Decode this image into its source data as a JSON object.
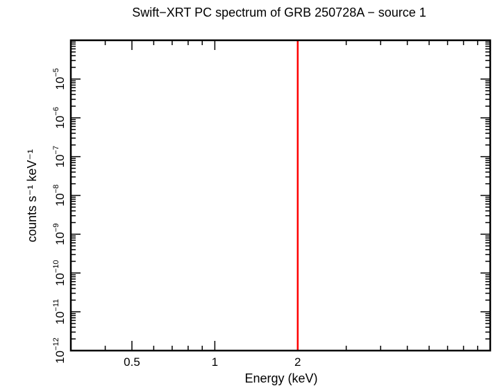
{
  "chart_data": {
    "type": "line",
    "title": "Swift−XRT PC spectrum of GRB 250728A − source 1",
    "xlabel": "Energy (keV)",
    "ylabel": "counts s⁻¹ keV⁻¹",
    "x_scale": "log",
    "y_scale": "log",
    "xlim": [
      0.3,
      10
    ],
    "ylim": [
      1e-12,
      0.0001
    ],
    "x_major_ticks": [
      {
        "value": 0.5,
        "label": "0.5"
      },
      {
        "value": 1,
        "label": "1"
      },
      {
        "value": 2,
        "label": "2"
      }
    ],
    "y_major_ticks": [
      {
        "value": 1e-12,
        "base": "10",
        "exp": "−12"
      },
      {
        "value": 1e-11,
        "base": "10",
        "exp": "−11"
      },
      {
        "value": 1e-10,
        "base": "10",
        "exp": "−10"
      },
      {
        "value": 1e-09,
        "base": "10",
        "exp": "−9"
      },
      {
        "value": 1e-08,
        "base": "10",
        "exp": "−8"
      },
      {
        "value": 1e-07,
        "base": "10",
        "exp": "−7"
      },
      {
        "value": 1e-06,
        "base": "10",
        "exp": "−6"
      },
      {
        "value": 1e-05,
        "base": "10",
        "exp": "−5"
      }
    ],
    "series": [
      {
        "color": "#ff0000",
        "x": [
          2,
          2
        ],
        "y": [
          1e-12,
          0.0001
        ]
      }
    ],
    "grid": false
  }
}
